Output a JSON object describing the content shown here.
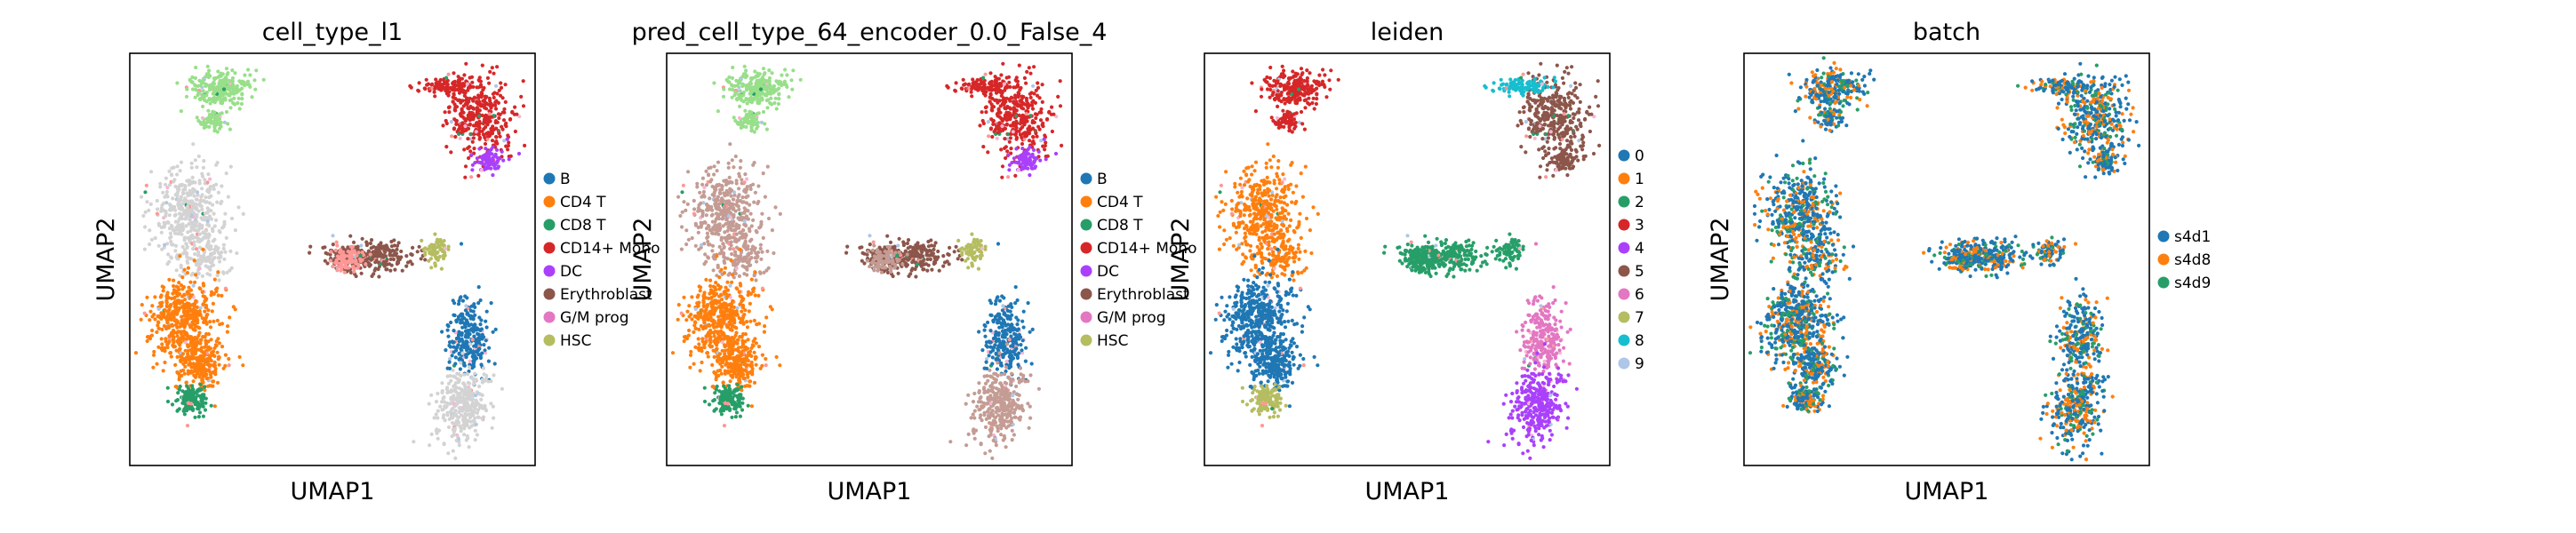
{
  "chart_data": [
    {
      "type": "scatter",
      "title": "cell_type_l1",
      "xlabel": "UMAP1",
      "ylabel": "UMAP2",
      "legend_position": "right",
      "legend": [
        {
          "label": "B",
          "color": "#1f77b4"
        },
        {
          "label": "CD4 T",
          "color": "#ff7f0e"
        },
        {
          "label": "CD8 T",
          "color": "#279e68"
        },
        {
          "label": "CD14+ Mono",
          "color": "#d62728"
        },
        {
          "label": "DC",
          "color": "#aa40fc"
        },
        {
          "label": "Erythroblast",
          "color": "#8c564b"
        },
        {
          "label": "G/M prog",
          "color": "#e377c2"
        },
        {
          "label": "HSC",
          "color": "#b5bd61"
        }
      ]
    },
    {
      "type": "scatter",
      "title": "pred_cell_type_64_encoder_0.0_False_4",
      "xlabel": "UMAP1",
      "ylabel": "UMAP2",
      "legend_position": "right",
      "legend": [
        {
          "label": "B",
          "color": "#1f77b4"
        },
        {
          "label": "CD4 T",
          "color": "#ff7f0e"
        },
        {
          "label": "CD8 T",
          "color": "#279e68"
        },
        {
          "label": "CD14+ Mono",
          "color": "#d62728"
        },
        {
          "label": "DC",
          "color": "#aa40fc"
        },
        {
          "label": "Erythroblast",
          "color": "#8c564b"
        },
        {
          "label": "G/M prog",
          "color": "#e377c2"
        },
        {
          "label": "HSC",
          "color": "#b5bd61"
        }
      ]
    },
    {
      "type": "scatter",
      "title": "leiden",
      "xlabel": "UMAP1",
      "ylabel": "UMAP2",
      "legend_position": "right",
      "legend": [
        {
          "label": "0",
          "color": "#1f77b4"
        },
        {
          "label": "1",
          "color": "#ff7f0e"
        },
        {
          "label": "2",
          "color": "#279e68"
        },
        {
          "label": "3",
          "color": "#d62728"
        },
        {
          "label": "4",
          "color": "#aa40fc"
        },
        {
          "label": "5",
          "color": "#8c564b"
        },
        {
          "label": "6",
          "color": "#e377c2"
        },
        {
          "label": "7",
          "color": "#b5bd61"
        },
        {
          "label": "8",
          "color": "#17becf"
        },
        {
          "label": "9",
          "color": "#aec7e8"
        }
      ]
    },
    {
      "type": "scatter",
      "title": "batch",
      "xlabel": "UMAP1",
      "ylabel": "UMAP2",
      "legend_position": "right",
      "legend": [
        {
          "label": "s4d1",
          "color": "#1f77b4"
        },
        {
          "label": "s4d8",
          "color": "#ff7f0e"
        },
        {
          "label": "s4d9",
          "color": "#279e68"
        }
      ]
    }
  ]
}
